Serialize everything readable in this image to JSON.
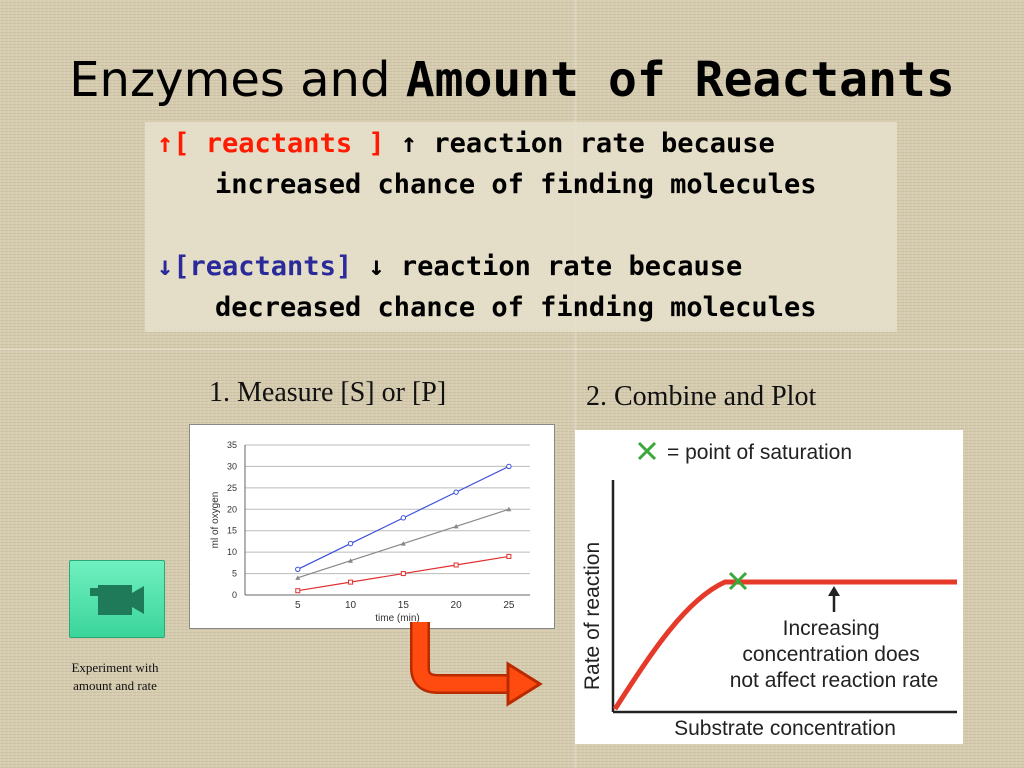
{
  "title": {
    "light": "Enzymes and ",
    "bold": "Amount of Reactants"
  },
  "bullets": [
    {
      "arrow_glyph": "↑",
      "highlight": "[ reactants ]",
      "arrow2_glyph": "↑",
      "rest": " reaction rate because",
      "cont": "increased chance of finding molecules"
    },
    {
      "arrow_glyph": "↓",
      "highlight": "[reactants]",
      "arrow2_glyph": "↓",
      "rest": " reaction rate because",
      "cont": "decreased chance of finding molecules"
    }
  ],
  "captions": {
    "step1": "1. Measure [S] or [P]",
    "step2": "2. Combine and Plot"
  },
  "video": {
    "icon": "video-camera-icon",
    "label_line1": "Experiment with",
    "label_line2": "amount and rate"
  },
  "colors": {
    "accent_red": "#ff1a00",
    "bullet_blue": "#2a2a9a",
    "plot_red": "#e53a2a",
    "button_green": "#3bd59a"
  },
  "chart_data": [
    {
      "type": "line",
      "title": "",
      "xlabel": "time (min)",
      "ylabel": "ml of oxygen",
      "x": [
        5,
        10,
        15,
        20,
        25
      ],
      "xlim": [
        0,
        27
      ],
      "ylim": [
        0,
        35
      ],
      "xticks": [
        5,
        10,
        15,
        20,
        25
      ],
      "yticks": [
        0,
        5,
        10,
        15,
        20,
        25,
        30,
        35
      ],
      "grid": true,
      "series": [
        {
          "values": [
            6,
            12,
            18,
            24,
            30
          ],
          "color": "#3a50d8",
          "marker": "circle"
        },
        {
          "values": [
            4,
            8,
            12,
            16,
            20
          ],
          "color": "#888888",
          "marker": "triangle"
        },
        {
          "values": [
            1,
            3,
            5,
            7,
            9
          ],
          "color": "#e03030",
          "marker": "square"
        }
      ]
    },
    {
      "type": "line",
      "xlabel": "Substrate concentration",
      "ylabel": "Rate of reaction",
      "legend": "= point of saturation",
      "annotation": [
        "Increasing",
        "concentration does",
        "not affect reaction rate"
      ]
    }
  ]
}
